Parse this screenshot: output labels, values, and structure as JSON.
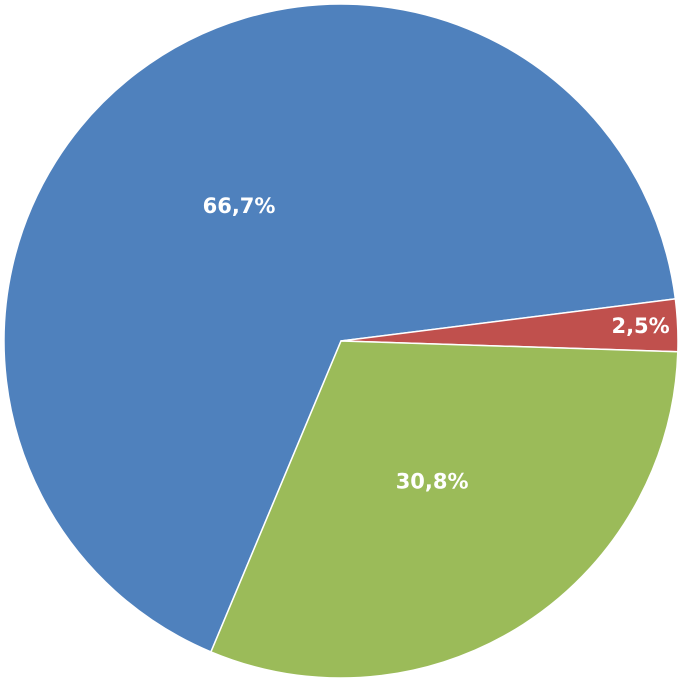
{
  "chart_data": {
    "type": "pie",
    "values": [
      66.7,
      2.5,
      30.8
    ],
    "value_labels": [
      "66,7%",
      "2,5%",
      "30,8%"
    ],
    "colors": [
      "#4f81bd",
      "#c0504d",
      "#9bbb59"
    ]
  }
}
